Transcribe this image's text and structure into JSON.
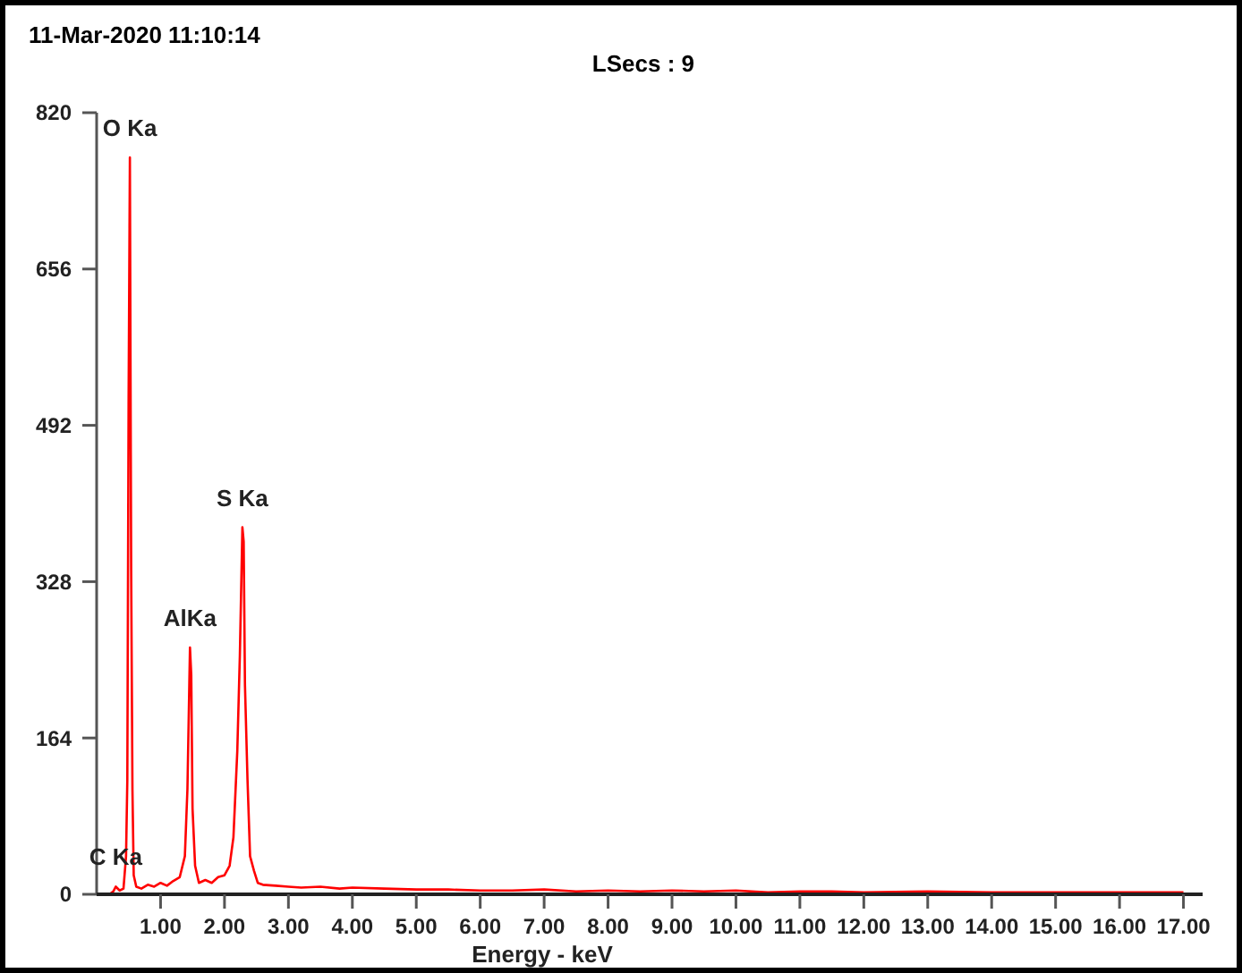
{
  "chart_data": {
    "type": "line",
    "title": "11-Mar-2020 11:10:14",
    "subtitle": "LSecs : 9",
    "xlabel": "Energy - keV",
    "x": [
      0.2,
      0.26,
      0.3,
      0.36,
      0.42,
      0.46,
      0.48,
      0.5,
      0.52,
      0.54,
      0.56,
      0.58,
      0.62,
      0.7,
      0.8,
      0.9,
      1.0,
      1.1,
      1.2,
      1.3,
      1.38,
      1.42,
      1.46,
      1.48,
      1.5,
      1.54,
      1.6,
      1.7,
      1.8,
      1.9,
      2.0,
      2.08,
      2.14,
      2.2,
      2.24,
      2.28,
      2.3,
      2.32,
      2.36,
      2.4,
      2.46,
      2.52,
      2.6,
      2.8,
      3.0,
      3.2,
      3.5,
      3.8,
      4.0,
      4.5,
      5.0,
      5.5,
      6.0,
      6.5,
      7.0,
      7.5,
      8.0,
      8.5,
      9.0,
      9.5,
      10.0,
      10.5,
      11.0,
      11.5,
      12.0,
      13.0,
      14.0,
      15.0,
      16.0,
      17.0
    ],
    "series": [
      {
        "color": "#ff0000",
        "values": [
          0,
          3,
          8,
          4,
          6,
          40,
          120,
          520,
          773,
          340,
          110,
          20,
          8,
          6,
          10,
          8,
          12,
          9,
          14,
          18,
          40,
          110,
          259,
          230,
          90,
          30,
          12,
          15,
          12,
          18,
          20,
          30,
          60,
          150,
          250,
          385,
          370,
          220,
          120,
          40,
          25,
          12,
          10,
          9,
          8,
          7,
          8,
          6,
          7,
          6,
          5,
          5,
          4,
          4,
          5,
          3,
          4,
          3,
          4,
          3,
          4,
          2,
          3,
          3,
          2,
          3,
          2,
          2,
          2,
          2
        ]
      }
    ],
    "xlim": [
      0,
      17.3
    ],
    "ylim": [
      0,
      820
    ],
    "xticks": [
      {
        "value": 1,
        "label": "1.00"
      },
      {
        "value": 2,
        "label": "2.00"
      },
      {
        "value": 3,
        "label": "3.00"
      },
      {
        "value": 4,
        "label": "4.00"
      },
      {
        "value": 5,
        "label": "5.00"
      },
      {
        "value": 6,
        "label": "6.00"
      },
      {
        "value": 7,
        "label": "7.00"
      },
      {
        "value": 8,
        "label": "8.00"
      },
      {
        "value": 9,
        "label": "9.00"
      },
      {
        "value": 10,
        "label": "10.00"
      },
      {
        "value": 11,
        "label": "11.00"
      },
      {
        "value": 12,
        "label": "12.00"
      },
      {
        "value": 13,
        "label": "13.00"
      },
      {
        "value": 14,
        "label": "14.00"
      },
      {
        "value": 15,
        "label": "15.00"
      },
      {
        "value": 16,
        "label": "16.00"
      },
      {
        "value": 17,
        "label": "17.00"
      }
    ],
    "yticks": [
      0,
      164,
      328,
      492,
      656,
      820
    ],
    "annotations": [
      {
        "text": "O Ka",
        "x": 0.52,
        "y": 773
      },
      {
        "text": "AlKa",
        "x": 1.46,
        "y": 259
      },
      {
        "text": "S Ka",
        "x": 2.28,
        "y": 385
      },
      {
        "text": "C Ka",
        "x": 0.3,
        "y": 8
      }
    ],
    "grid": false,
    "marker": "none",
    "line_style": "solid"
  }
}
